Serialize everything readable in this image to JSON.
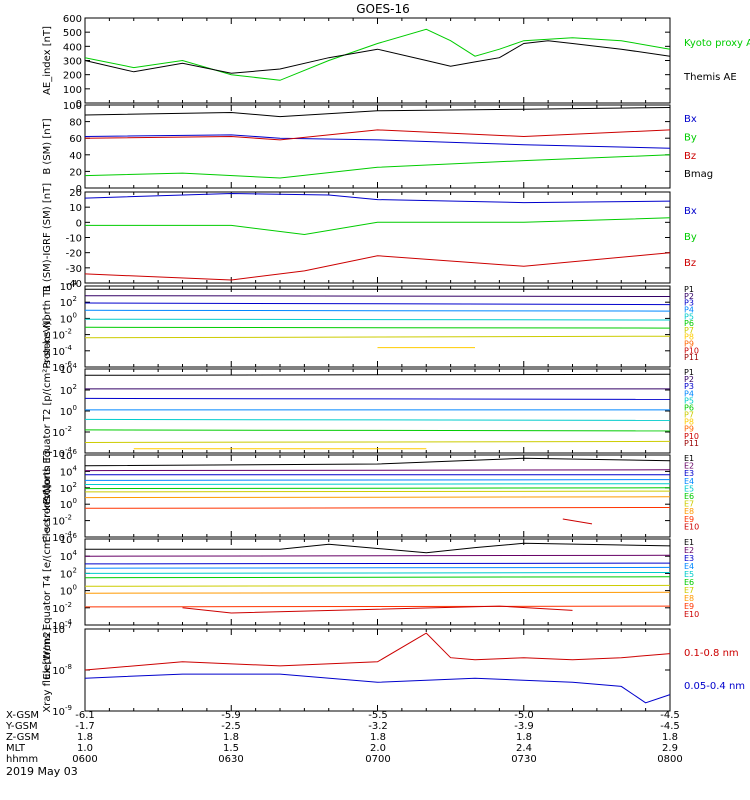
{
  "title": "GOES-16",
  "date_label": "2019 May 03",
  "chart_data": [
    {
      "type": "line",
      "ylabel": "AE_index [nT]",
      "ylim": [
        0,
        600
      ],
      "yscale": "linear",
      "ytick_labels": [
        "0",
        "100",
        "200",
        "300",
        "400",
        "500",
        "600"
      ],
      "xlim": [
        0,
        120
      ],
      "series": [
        {
          "name": "Kyoto proxy AE",
          "color": "#00cc00",
          "x": [
            0,
            10,
            20,
            30,
            40,
            50,
            60,
            70,
            75,
            80,
            85,
            90,
            95,
            100,
            110,
            120
          ],
          "y": [
            320,
            250,
            300,
            200,
            160,
            300,
            420,
            520,
            440,
            330,
            380,
            440,
            450,
            460,
            440,
            380
          ]
        },
        {
          "name": "Themis AE",
          "color": "#000000",
          "x": [
            0,
            10,
            20,
            30,
            40,
            50,
            60,
            70,
            75,
            80,
            85,
            90,
            95,
            100,
            110,
            120
          ],
          "y": [
            300,
            220,
            280,
            210,
            240,
            320,
            380,
            300,
            260,
            290,
            320,
            420,
            440,
            420,
            380,
            330
          ]
        }
      ]
    },
    {
      "type": "line",
      "ylabel": "B (SM) [nT]",
      "ylim": [
        0,
        100
      ],
      "yscale": "linear",
      "ytick_labels": [
        "0",
        "20",
        "40",
        "60",
        "80",
        "100"
      ],
      "xlim": [
        0,
        120
      ],
      "series": [
        {
          "name": "Bx",
          "color": "#0000cc",
          "x": [
            0,
            30,
            40,
            60,
            90,
            120
          ],
          "y": [
            62,
            64,
            60,
            58,
            52,
            48
          ]
        },
        {
          "name": "By",
          "color": "#00cc00",
          "x": [
            0,
            20,
            40,
            60,
            90,
            120
          ],
          "y": [
            15,
            18,
            12,
            25,
            33,
            40
          ]
        },
        {
          "name": "Bz",
          "color": "#cc0000",
          "x": [
            0,
            30,
            40,
            60,
            90,
            120
          ],
          "y": [
            60,
            62,
            58,
            70,
            62,
            70
          ]
        },
        {
          "name": "Bmag",
          "color": "#000000",
          "x": [
            0,
            30,
            40,
            60,
            90,
            120
          ],
          "y": [
            88,
            91,
            86,
            93,
            95,
            97
          ]
        }
      ]
    },
    {
      "type": "line",
      "ylabel": "B (SM)-IGRF (SM) [nT]",
      "ylim": [
        -40,
        20
      ],
      "yscale": "linear",
      "ytick_labels": [
        "-40",
        "-30",
        "-20",
        "-10",
        "0",
        "10",
        "20"
      ],
      "xlim": [
        0,
        120
      ],
      "series": [
        {
          "name": "Bx",
          "color": "#0000cc",
          "x": [
            0,
            30,
            50,
            60,
            90,
            120
          ],
          "y": [
            16,
            19,
            18,
            15,
            13,
            14
          ]
        },
        {
          "name": "By",
          "color": "#00cc00",
          "x": [
            0,
            30,
            45,
            60,
            90,
            120
          ],
          "y": [
            -2,
            -2,
            -8,
            0,
            0,
            3
          ]
        },
        {
          "name": "Bz",
          "color": "#cc0000",
          "x": [
            0,
            30,
            45,
            60,
            90,
            120
          ],
          "y": [
            -34,
            -38,
            -32,
            -22,
            -29,
            -20
          ]
        }
      ]
    },
    {
      "type": "line",
      "ylabel": "Protons North T1",
      "ylim": [
        -6,
        4
      ],
      "yscale": "log",
      "ytick_labels": [
        "10^-6",
        "10^-4",
        "10^-2",
        "10^0",
        "10^2",
        "10^4"
      ],
      "xlim": [
        0,
        120
      ],
      "series": [
        {
          "name": "P1",
          "color": "#000000",
          "x": [
            0,
            120
          ],
          "y": [
            3.6,
            3.6
          ]
        },
        {
          "name": "P2",
          "color": "#330066",
          "x": [
            0,
            120
          ],
          "y": [
            2.8,
            2.7
          ]
        },
        {
          "name": "P3",
          "color": "#0000cc",
          "x": [
            0,
            120
          ],
          "y": [
            1.9,
            1.7
          ]
        },
        {
          "name": "P4",
          "color": "#0088ff",
          "x": [
            0,
            120
          ],
          "y": [
            1.0,
            0.9
          ]
        },
        {
          "name": "P5",
          "color": "#00cccc",
          "x": [
            0,
            120
          ],
          "y": [
            -0.1,
            -0.2
          ]
        },
        {
          "name": "P6",
          "color": "#00cc00",
          "x": [
            0,
            120
          ],
          "y": [
            -1.1,
            -1.2
          ]
        },
        {
          "name": "P7",
          "color": "#cccc00",
          "x": [
            0,
            120
          ],
          "y": [
            -2.4,
            -2.2
          ]
        },
        {
          "name": "P8",
          "color": "#ffcc00",
          "x": [
            60,
            80
          ],
          "y": [
            -3.6,
            -3.6
          ]
        },
        {
          "name": "P9",
          "color": "#ff6600",
          "x": [],
          "y": []
        },
        {
          "name": "P10",
          "color": "#cc0000",
          "x": [],
          "y": []
        },
        {
          "name": "P11",
          "color": "#990000",
          "x": [],
          "y": []
        }
      ]
    },
    {
      "type": "line",
      "ylabel": "Protons Equator T2 [p/(cm²-s-sr-keV)]",
      "ylim": [
        -4,
        4
      ],
      "yscale": "log",
      "ytick_labels": [
        "10^-4",
        "10^-2",
        "10^0",
        "10^2",
        "10^4"
      ],
      "xlim": [
        0,
        120
      ],
      "series": [
        {
          "name": "P1",
          "color": "#000000",
          "x": [
            0,
            120
          ],
          "y": [
            3.4,
            3.5
          ]
        },
        {
          "name": "P2",
          "color": "#330066",
          "x": [
            0,
            120
          ],
          "y": [
            2.1,
            2.1
          ]
        },
        {
          "name": "P3",
          "color": "#0000cc",
          "x": [
            0,
            120
          ],
          "y": [
            1.2,
            1.1
          ]
        },
        {
          "name": "P4",
          "color": "#0088ff",
          "x": [
            0,
            120
          ],
          "y": [
            0.1,
            0.1
          ]
        },
        {
          "name": "P5",
          "color": "#00cccc",
          "x": [
            0,
            120
          ],
          "y": [
            -0.8,
            -0.9
          ]
        },
        {
          "name": "P6",
          "color": "#00cc00",
          "x": [
            0,
            120
          ],
          "y": [
            -1.8,
            -1.9
          ]
        },
        {
          "name": "P7",
          "color": "#cccc00",
          "x": [
            0,
            120
          ],
          "y": [
            -3.0,
            -2.9
          ]
        },
        {
          "name": "P8",
          "color": "#ffcc00",
          "x": [
            10,
            70
          ],
          "y": [
            -3.6,
            -3.6
          ]
        },
        {
          "name": "P9",
          "color": "#ff6600",
          "x": [],
          "y": []
        },
        {
          "name": "P10",
          "color": "#cc0000",
          "x": [],
          "y": []
        },
        {
          "name": "P11",
          "color": "#990000",
          "x": [],
          "y": []
        }
      ]
    },
    {
      "type": "line",
      "ylabel": "Electrons North T3",
      "ylim": [
        -4,
        6
      ],
      "yscale": "log",
      "ytick_labels": [
        "10^-4",
        "10^-2",
        "10^0",
        "10^2",
        "10^4",
        "10^6"
      ],
      "xlim": [
        0,
        120
      ],
      "series": [
        {
          "name": "E1",
          "color": "#000000",
          "x": [
            0,
            60,
            90,
            120
          ],
          "y": [
            4.7,
            4.9,
            5.6,
            5.3
          ]
        },
        {
          "name": "E2",
          "color": "#660066",
          "x": [
            0,
            120
          ],
          "y": [
            4.1,
            4.2
          ]
        },
        {
          "name": "E3",
          "color": "#0000cc",
          "x": [
            0,
            120
          ],
          "y": [
            3.6,
            3.6
          ]
        },
        {
          "name": "E4",
          "color": "#0088ff",
          "x": [
            0,
            120
          ],
          "y": [
            2.9,
            3.0
          ]
        },
        {
          "name": "E5",
          "color": "#00cccc",
          "x": [
            0,
            120
          ],
          "y": [
            2.4,
            2.5
          ]
        },
        {
          "name": "E6",
          "color": "#00cc00",
          "x": [
            0,
            120
          ],
          "y": [
            1.9,
            2.0
          ]
        },
        {
          "name": "E7",
          "color": "#cccc00",
          "x": [
            0,
            120
          ],
          "y": [
            1.5,
            1.6
          ]
        },
        {
          "name": "E8",
          "color": "#ff9900",
          "x": [
            0,
            120
          ],
          "y": [
            0.8,
            0.9
          ]
        },
        {
          "name": "E9",
          "color": "#ff3300",
          "x": [
            0,
            120
          ],
          "y": [
            -0.5,
            -0.4
          ]
        },
        {
          "name": "E10",
          "color": "#cc0000",
          "x": [
            98,
            104
          ],
          "y": [
            -1.8,
            -2.4
          ]
        }
      ]
    },
    {
      "type": "line",
      "ylabel": "Electrons Equator T4 [e/(cm²-s-sr-keV)]",
      "ylim": [
        -4,
        6
      ],
      "yscale": "log",
      "ytick_labels": [
        "10^-4",
        "10^-2",
        "10^0",
        "10^2",
        "10^4",
        "10^6"
      ],
      "xlim": [
        0,
        120
      ],
      "series": [
        {
          "name": "E1",
          "color": "#000000",
          "x": [
            0,
            40,
            50,
            70,
            80,
            90,
            120
          ],
          "y": [
            4.8,
            4.8,
            5.4,
            4.4,
            5.0,
            5.5,
            5.2
          ]
        },
        {
          "name": "E2",
          "color": "#660066",
          "x": [
            0,
            120
          ],
          "y": [
            4.0,
            4.1
          ]
        },
        {
          "name": "E3",
          "color": "#0000cc",
          "x": [
            0,
            120
          ],
          "y": [
            3.1,
            3.2
          ]
        },
        {
          "name": "E4",
          "color": "#0088ff",
          "x": [
            0,
            120
          ],
          "y": [
            2.6,
            2.7
          ]
        },
        {
          "name": "E5",
          "color": "#00cccc",
          "x": [
            0,
            120
          ],
          "y": [
            2.0,
            2.1
          ]
        },
        {
          "name": "E6",
          "color": "#00cc00",
          "x": [
            0,
            120
          ],
          "y": [
            1.5,
            1.6
          ]
        },
        {
          "name": "E7",
          "color": "#cccc00",
          "x": [
            0,
            120
          ],
          "y": [
            0.5,
            0.6
          ]
        },
        {
          "name": "E8",
          "color": "#ff9900",
          "x": [
            0,
            120
          ],
          "y": [
            -0.3,
            -0.2
          ]
        },
        {
          "name": "E9",
          "color": "#ff3300",
          "x": [
            0,
            120
          ],
          "y": [
            -1.9,
            -1.8
          ]
        },
        {
          "name": "E10",
          "color": "#cc0000",
          "x": [
            20,
            30,
            85,
            100
          ],
          "y": [
            -2.0,
            -2.6,
            -1.8,
            -2.3
          ]
        }
      ]
    },
    {
      "type": "line",
      "ylabel": "Xray flux [W/m2]",
      "ylim": [
        -9,
        -7
      ],
      "yscale": "log",
      "ytick_labels": [
        "10^-9",
        "10^-8",
        "10^-7"
      ],
      "xlim": [
        0,
        120
      ],
      "series": [
        {
          "name": "0.1-0.8 nm",
          "color": "#cc0000",
          "x": [
            0,
            20,
            40,
            60,
            70,
            75,
            80,
            90,
            100,
            110,
            120
          ],
          "y": [
            -8.0,
            -7.8,
            -7.9,
            -7.8,
            -7.1,
            -7.7,
            -7.75,
            -7.7,
            -7.75,
            -7.7,
            -7.6
          ]
        },
        {
          "name": "0.05-0.4 nm",
          "color": "#0000cc",
          "x": [
            0,
            20,
            40,
            60,
            80,
            100,
            110,
            115,
            120
          ],
          "y": [
            -8.2,
            -8.1,
            -8.1,
            -8.3,
            -8.2,
            -8.3,
            -8.4,
            -8.8,
            -8.6
          ]
        }
      ]
    }
  ],
  "x_rows": [
    {
      "label": "X-GSM",
      "values": [
        "-6.1",
        "-5.9",
        "-5.5",
        "-5.0",
        "-4.5"
      ]
    },
    {
      "label": "Y-GSM",
      "values": [
        "-1.7",
        "-2.5",
        "-3.2",
        "-3.9",
        "-4.5"
      ]
    },
    {
      "label": "Z-GSM",
      "values": [
        "1.8",
        "1.8",
        "1.8",
        "1.8",
        "1.8"
      ]
    },
    {
      "label": "MLT",
      "values": [
        "1.0",
        "1.5",
        "2.0",
        "2.4",
        "2.9"
      ]
    },
    {
      "label": "hhmm",
      "values": [
        "0600",
        "0630",
        "0700",
        "0730",
        "0800"
      ]
    }
  ]
}
